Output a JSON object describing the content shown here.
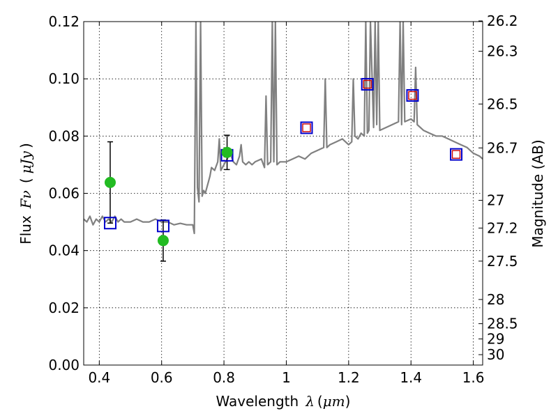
{
  "chart_data": {
    "type": "scatter",
    "xlabel": "Wavelength",
    "xlabel_symbol": "λ",
    "xlabel_unit": "μm",
    "ylabel": "Flux",
    "ylabel_symbol": "Fν",
    "ylabel_unit": "μJy",
    "y2label": "Magnitude (AB)",
    "xlim": [
      0.35,
      1.63
    ],
    "ylim": [
      0.0,
      0.12
    ],
    "grid": true,
    "x_ticks": [
      {
        "value": 0.4,
        "label": "0.4"
      },
      {
        "value": 0.6,
        "label": "0.6"
      },
      {
        "value": 0.8,
        "label": "0.8"
      },
      {
        "value": 1.0,
        "label": "1"
      },
      {
        "value": 1.2,
        "label": "1.2"
      },
      {
        "value": 1.4,
        "label": "1.4"
      },
      {
        "value": 1.6,
        "label": "1.6"
      }
    ],
    "y_ticks": [
      {
        "value": 0.0,
        "label": "0.00"
      },
      {
        "value": 0.02,
        "label": "0.02"
      },
      {
        "value": 0.04,
        "label": "0.04"
      },
      {
        "value": 0.06,
        "label": "0.06"
      },
      {
        "value": 0.08,
        "label": "0.08"
      },
      {
        "value": 0.1,
        "label": "0.10"
      },
      {
        "value": 0.12,
        "label": "0.12"
      }
    ],
    "y2_ticks": [
      {
        "mag": 26.2,
        "label": "26.2"
      },
      {
        "mag": 26.3,
        "label": "26.3"
      },
      {
        "mag": 26.5,
        "label": "26.5"
      },
      {
        "mag": 26.7,
        "label": "26.7"
      },
      {
        "mag": 27.0,
        "label": "27"
      },
      {
        "mag": 27.2,
        "label": "27.2"
      },
      {
        "mag": 27.5,
        "label": "27.5"
      },
      {
        "mag": 28.0,
        "label": "28"
      },
      {
        "mag": 28.5,
        "label": "28.5"
      },
      {
        "mag": 29.0,
        "label": "29"
      },
      {
        "mag": 30.0,
        "label": "30"
      }
    ],
    "colors": {
      "model": "#808080",
      "observed": "#22bb22",
      "model_phot": "#0000cc",
      "synthetic": "#cc0000",
      "errorbar": "#000000"
    },
    "series": [
      {
        "name": "model spectrum",
        "style": "line",
        "x": [
          0.35,
          0.36,
          0.37,
          0.38,
          0.39,
          0.4,
          0.41,
          0.42,
          0.43,
          0.44,
          0.45,
          0.46,
          0.47,
          0.48,
          0.5,
          0.52,
          0.54,
          0.56,
          0.58,
          0.6,
          0.62,
          0.64,
          0.66,
          0.68,
          0.7,
          0.705,
          0.71,
          0.715,
          0.72,
          0.725,
          0.73,
          0.735,
          0.74,
          0.75,
          0.755,
          0.76,
          0.77,
          0.78,
          0.785,
          0.79,
          0.8,
          0.81,
          0.82,
          0.83,
          0.84,
          0.85,
          0.855,
          0.86,
          0.87,
          0.88,
          0.89,
          0.9,
          0.92,
          0.93,
          0.935,
          0.94,
          0.95,
          0.955,
          0.96,
          0.965,
          0.97,
          0.98,
          1.0,
          1.02,
          1.04,
          1.06,
          1.08,
          1.1,
          1.12,
          1.125,
          1.13,
          1.14,
          1.16,
          1.18,
          1.2,
          1.21,
          1.215,
          1.22,
          1.23,
          1.24,
          1.25,
          1.255,
          1.26,
          1.265,
          1.27,
          1.28,
          1.285,
          1.29,
          1.295,
          1.3,
          1.32,
          1.34,
          1.36,
          1.365,
          1.37,
          1.375,
          1.38,
          1.4,
          1.41,
          1.415,
          1.42,
          1.44,
          1.46,
          1.48,
          1.5,
          1.52,
          1.54,
          1.56,
          1.58,
          1.6,
          1.62,
          1.63
        ],
        "y": [
          0.051,
          0.05,
          0.052,
          0.049,
          0.051,
          0.05,
          0.052,
          0.05,
          0.051,
          0.05,
          0.052,
          0.05,
          0.051,
          0.05,
          0.05,
          0.051,
          0.05,
          0.05,
          0.051,
          0.05,
          0.05,
          0.049,
          0.0495,
          0.049,
          0.049,
          0.046,
          0.12,
          0.062,
          0.057,
          0.12,
          0.059,
          0.061,
          0.06,
          0.064,
          0.066,
          0.069,
          0.068,
          0.071,
          0.079,
          0.068,
          0.07,
          0.072,
          0.074,
          0.071,
          0.07,
          0.073,
          0.077,
          0.071,
          0.07,
          0.071,
          0.07,
          0.071,
          0.072,
          0.069,
          0.094,
          0.07,
          0.071,
          0.12,
          0.071,
          0.12,
          0.07,
          0.071,
          0.071,
          0.072,
          0.073,
          0.072,
          0.074,
          0.075,
          0.076,
          0.1,
          0.076,
          0.077,
          0.078,
          0.079,
          0.077,
          0.078,
          0.1,
          0.08,
          0.079,
          0.081,
          0.08,
          0.12,
          0.081,
          0.082,
          0.12,
          0.083,
          0.12,
          0.084,
          0.12,
          0.082,
          0.083,
          0.084,
          0.085,
          0.12,
          0.084,
          0.12,
          0.085,
          0.086,
          0.085,
          0.104,
          0.084,
          0.082,
          0.081,
          0.08,
          0.08,
          0.079,
          0.078,
          0.077,
          0.076,
          0.074,
          0.073,
          0.072
        ]
      },
      {
        "name": "observed photometry",
        "style": "marker-circle",
        "x": [
          0.435,
          0.605,
          0.81
        ],
        "y": [
          0.0638,
          0.0435,
          0.0743
        ],
        "yerr": [
          0.0142,
          0.0072,
          0.006
        ]
      },
      {
        "name": "model photometry",
        "style": "marker-square-open",
        "x": [
          0.435,
          0.605,
          0.81,
          1.065,
          1.26,
          1.405,
          1.545
        ],
        "y": [
          0.0496,
          0.0486,
          0.0733,
          0.0829,
          0.0981,
          0.0942,
          0.0736
        ]
      },
      {
        "name": "synthetic photometry",
        "style": "marker-square-small",
        "x": [
          1.065,
          1.26,
          1.405,
          1.545
        ],
        "y": [
          0.0829,
          0.0981,
          0.0942,
          0.0736
        ]
      }
    ]
  }
}
